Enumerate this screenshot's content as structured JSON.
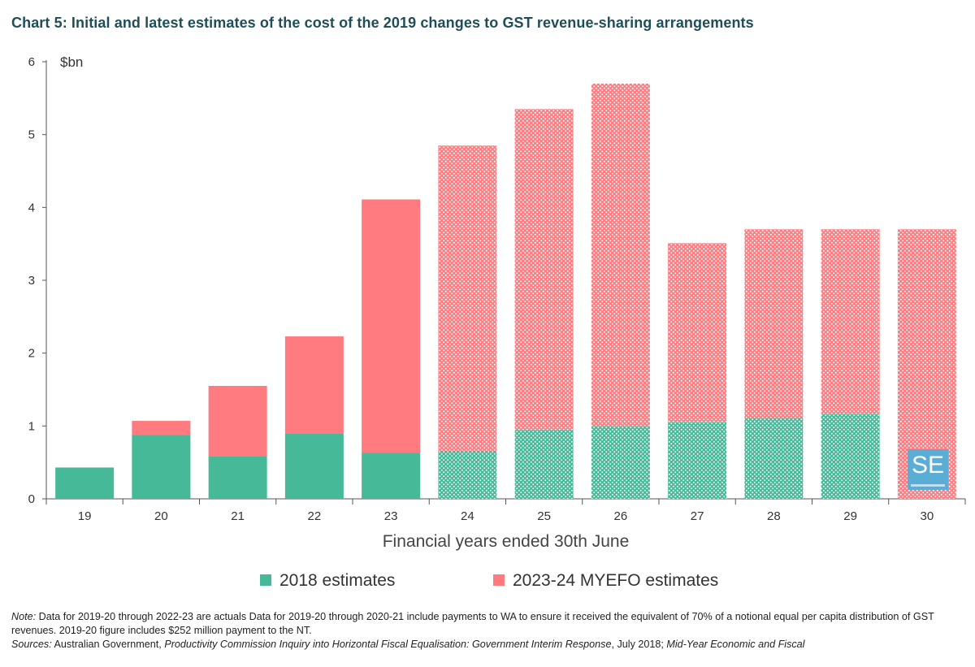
{
  "title": "Chart 5: Initial and latest estimates of the cost of the 2019 changes to GST revenue-sharing arrangements",
  "colors": {
    "green": "#45b998",
    "red": "#ff7b80",
    "title": "#1f4e5a",
    "axis": "#555555"
  },
  "chart_data": {
    "type": "bar",
    "stacked": true,
    "categories": [
      "19",
      "20",
      "21",
      "22",
      "23",
      "24",
      "25",
      "26",
      "27",
      "28",
      "29",
      "30"
    ],
    "series": [
      {
        "name": "2018 estimates",
        "values": [
          0.43,
          0.88,
          0.58,
          0.9,
          0.63,
          0.66,
          0.95,
          1.0,
          1.05,
          1.11,
          1.16,
          0
        ]
      },
      {
        "name": "2023-24 MYEFO estimates",
        "values": [
          0,
          0.19,
          0.97,
          1.33,
          3.48,
          4.19,
          4.4,
          4.7,
          2.46,
          2.59,
          2.54,
          3.7
        ]
      }
    ],
    "patterned_from_index": 5,
    "xlabel": "Financial years ended 30th June",
    "ylabel": "$bn",
    "ylim": [
      0,
      6
    ],
    "yticks": [
      "0",
      "1",
      "2",
      "3",
      "4",
      "5",
      "6"
    ],
    "grid": false,
    "legend": "bottom"
  },
  "logo": {
    "text": "SE"
  },
  "notes": {
    "note_label": "Note:",
    "note_text": " Data for 2019-20 through 2022-23 are actuals Data for 2019-20 through 2020-21 include payments to WA to ensure it received the equivalent of 70% of a notional equal per capita distribution of GST revenues. 2019-20 figure includes $252 million payment to the NT.",
    "sources_label": "Sources:",
    "sources_text_1": " Australian Government, ",
    "sources_italic_1": "Productivity Commission Inquiry into Horizontal Fiscal Equalisation: Government Interim Response",
    "sources_text_2": ", July 2018; ",
    "sources_italic_2": "Mid-Year Economic and Fiscal"
  }
}
